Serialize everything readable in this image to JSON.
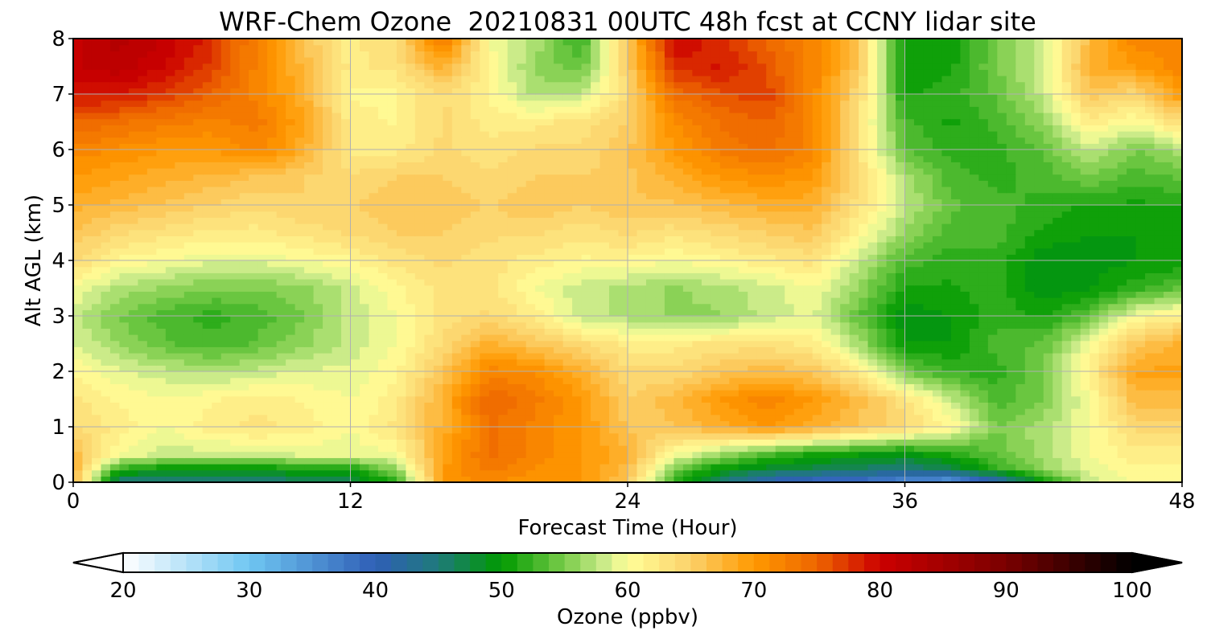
{
  "chart_data": {
    "type": "heatmap",
    "title": "WRF-Chem Ozone  20210831 00UTC 48h fcst at CCNY lidar site",
    "xlabel": "Forecast Time (Hour)",
    "ylabel": "Alt AGL (km)",
    "xlim": [
      0,
      48
    ],
    "ylim": [
      0,
      8
    ],
    "x_ticks": [
      "0",
      "12",
      "24",
      "36",
      "48"
    ],
    "y_ticks": [
      "0",
      "1",
      "2",
      "3",
      "4",
      "5",
      "6",
      "7",
      "8"
    ],
    "grid": true,
    "colorbar": {
      "label": "Ozone  (ppbv)",
      "orientation": "horizontal",
      "extend": "both",
      "range": [
        20,
        100
      ],
      "ticks": [
        "20",
        "30",
        "40",
        "50",
        "60",
        "70",
        "80",
        "90",
        "100"
      ],
      "stops": [
        {
          "value": 20,
          "color": "#ffffff"
        },
        {
          "value": 30,
          "color": "#6fc6f2"
        },
        {
          "value": 40,
          "color": "#2f5fb6"
        },
        {
          "value": 45,
          "color": "#1f7a7a"
        },
        {
          "value": 50,
          "color": "#009a00"
        },
        {
          "value": 55,
          "color": "#7acc4a"
        },
        {
          "value": 58,
          "color": "#c8ea88"
        },
        {
          "value": 60,
          "color": "#ffff99"
        },
        {
          "value": 65,
          "color": "#fcd16a"
        },
        {
          "value": 70,
          "color": "#ff9900"
        },
        {
          "value": 75,
          "color": "#ee6600"
        },
        {
          "value": 80,
          "color": "#cc0000"
        },
        {
          "value": 90,
          "color": "#7a0000"
        },
        {
          "value": 100,
          "color": "#000000"
        }
      ]
    },
    "x": [
      0,
      2,
      4,
      6,
      8,
      10,
      12,
      14,
      16,
      18,
      20,
      22,
      24,
      26,
      28,
      30,
      32,
      34,
      36,
      38,
      40,
      42,
      44,
      46,
      48
    ],
    "y": [
      0,
      0.25,
      0.5,
      1,
      1.5,
      2,
      2.5,
      3,
      3.5,
      4,
      4.5,
      5,
      5.5,
      6,
      6.5,
      7,
      7.5,
      8
    ],
    "z": [
      [
        68,
        44,
        44,
        44,
        44,
        46,
        46,
        52,
        70,
        72,
        70,
        70,
        66,
        52,
        45,
        40,
        38,
        37,
        35,
        33,
        40,
        50,
        58,
        60,
        60
      ],
      [
        68,
        52,
        50,
        50,
        50,
        51,
        51,
        56,
        70,
        73,
        71,
        70,
        67,
        55,
        50,
        48,
        47,
        46,
        45,
        47,
        52,
        56,
        59,
        61,
        61
      ],
      [
        67,
        60,
        58,
        58,
        58,
        59,
        59,
        60,
        69,
        74,
        72,
        70,
        68,
        60,
        56,
        53,
        51,
        50,
        49,
        51,
        54,
        57,
        60,
        62,
        62
      ],
      [
        64,
        62,
        60,
        62,
        63,
        62,
        60,
        63,
        68,
        74,
        72,
        70,
        66,
        66,
        68,
        70,
        68,
        66,
        64,
        61,
        55,
        57,
        60,
        64,
        64
      ],
      [
        63,
        61,
        60,
        61,
        62,
        61,
        60,
        62,
        68,
        75,
        73,
        70,
        65,
        67,
        70,
        72,
        70,
        67,
        63,
        58,
        53,
        55,
        60,
        67,
        67
      ],
      [
        61,
        59,
        58,
        57,
        58,
        59,
        59,
        61,
        66,
        72,
        71,
        68,
        64,
        64,
        66,
        67,
        66,
        62,
        55,
        52,
        52,
        55,
        62,
        69,
        69
      ],
      [
        59,
        56,
        54,
        53,
        54,
        56,
        58,
        60,
        64,
        68,
        66,
        64,
        62,
        62,
        63,
        63,
        62,
        57,
        50,
        50,
        53,
        54,
        60,
        66,
        68
      ],
      [
        58,
        55,
        53,
        52,
        53,
        55,
        58,
        60,
        63,
        64,
        62,
        58,
        57,
        56,
        56,
        58,
        59,
        54,
        49,
        50,
        52,
        51,
        54,
        60,
        62
      ],
      [
        60,
        57,
        56,
        55,
        55,
        56,
        58,
        61,
        63,
        63,
        60,
        58,
        57,
        56,
        57,
        58,
        60,
        56,
        51,
        51,
        52,
        49,
        50,
        52,
        54
      ],
      [
        64,
        61,
        60,
        59,
        59,
        60,
        61,
        63,
        64,
        63,
        62,
        61,
        61,
        60,
        61,
        62,
        63,
        58,
        53,
        52,
        52,
        49,
        49,
        50,
        50
      ],
      [
        66,
        64,
        63,
        62,
        62,
        63,
        64,
        65,
        65,
        64,
        64,
        63,
        64,
        63,
        64,
        65,
        66,
        61,
        56,
        53,
        53,
        51,
        50,
        50,
        50
      ],
      [
        68,
        67,
        66,
        65,
        64,
        65,
        65,
        66,
        66,
        65,
        66,
        65,
        66,
        66,
        67,
        68,
        68,
        63,
        58,
        54,
        53,
        52,
        51,
        51,
        51
      ],
      [
        70,
        69,
        68,
        67,
        66,
        65,
        64,
        65,
        65,
        64,
        65,
        65,
        66,
        68,
        70,
        71,
        70,
        64,
        57,
        53,
        52,
        53,
        55,
        53,
        54
      ],
      [
        72,
        71,
        70,
        70,
        72,
        68,
        62,
        62,
        64,
        63,
        64,
        64,
        66,
        70,
        73,
        74,
        72,
        63,
        54,
        52,
        52,
        54,
        58,
        55,
        57
      ],
      [
        75,
        74,
        73,
        72,
        73,
        69,
        62,
        61,
        64,
        62,
        62,
        63,
        65,
        71,
        74,
        75,
        72,
        63,
        53,
        51,
        53,
        56,
        62,
        60,
        64
      ],
      [
        79,
        79,
        77,
        75,
        72,
        68,
        61,
        61,
        64,
        61,
        57,
        58,
        64,
        74,
        76,
        77,
        72,
        64,
        51,
        52,
        54,
        58,
        66,
        64,
        70
      ],
      [
        81,
        82,
        80,
        77,
        72,
        67,
        62,
        63,
        68,
        61,
        56,
        54,
        65,
        78,
        79,
        76,
        72,
        66,
        50,
        51,
        55,
        58,
        68,
        70,
        72
      ],
      [
        81,
        83,
        81,
        78,
        72,
        66,
        62,
        64,
        74,
        60,
        57,
        52,
        66,
        80,
        78,
        75,
        72,
        66,
        50,
        50,
        55,
        58,
        67,
        72,
        72
      ]
    ]
  }
}
